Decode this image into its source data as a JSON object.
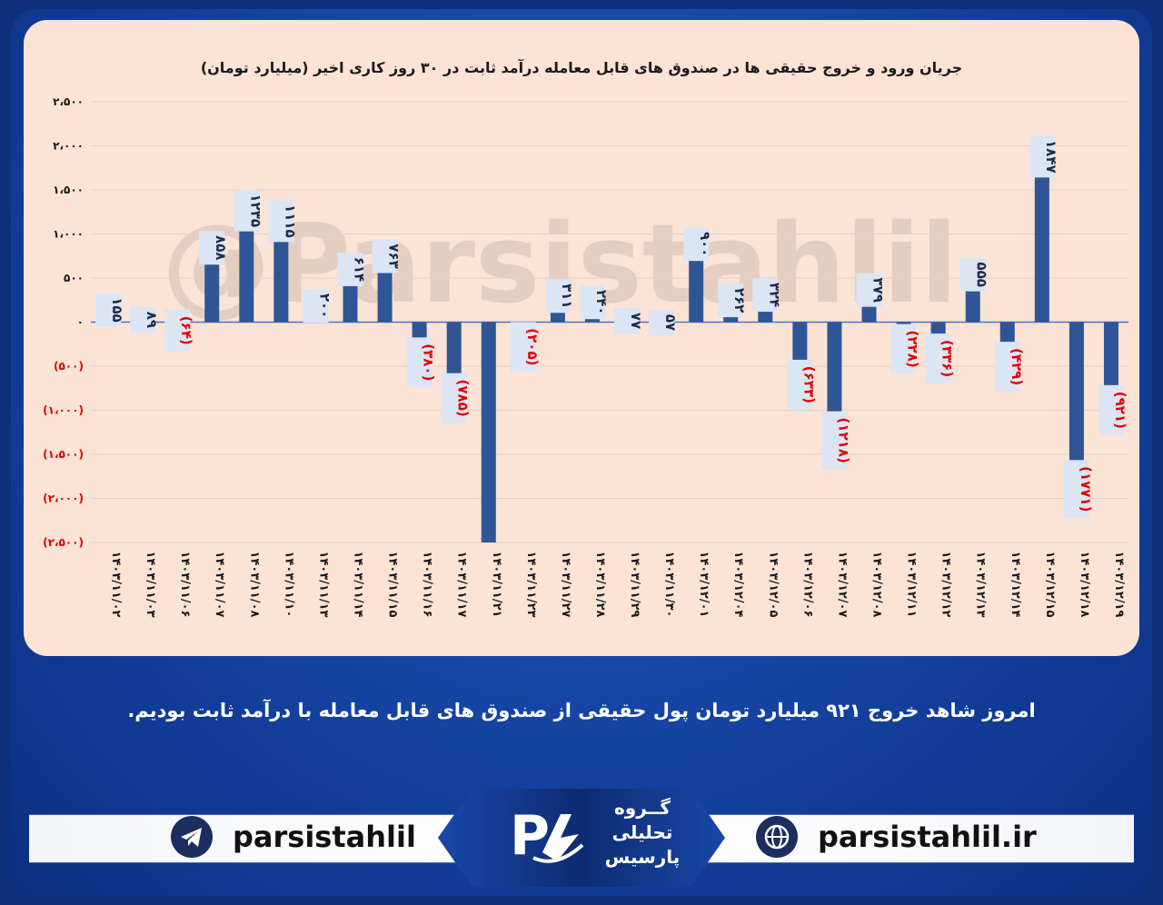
{
  "chart_data": {
    "type": "bar",
    "title": "جریان ورود و خروج حقیقی ها در صندوق های قابل معامله درآمد ثابت در ۳۰ روز کاری اخیر (میلیارد تومان)",
    "xlabel": "",
    "ylabel": "",
    "ylim": [
      -2500,
      2500
    ],
    "grid": true,
    "ytick_labels": [
      "۲،۵۰۰",
      "۲،۰۰۰",
      "۱،۵۰۰",
      "۱،۰۰۰",
      "۵۰۰",
      "۰",
      "(۵۰۰)",
      "(۱،۰۰۰)",
      "(۱،۵۰۰)",
      "(۲،۰۰۰)",
      "(۲،۵۰۰)"
    ],
    "ytick_values": [
      2500,
      2000,
      1500,
      1000,
      500,
      0,
      -500,
      -1000,
      -1500,
      -2000,
      -2500
    ],
    "categories": [
      "۱۴۰۳/۱۱/۰۲",
      "۱۴۰۳/۱۱/۰۳",
      "۱۴۰۳/۱۱/۰۶",
      "۱۴۰۳/۱۱/۰۷",
      "۱۴۰۳/۱۱/۰۸",
      "۱۴۰۳/۱۱/۱۰",
      "۱۴۰۳/۱۱/۱۳",
      "۱۴۰۳/۱۱/۱۴",
      "۱۴۰۳/۱۱/۱۵",
      "۱۴۰۳/۱۱/۱۶",
      "۱۴۰۳/۱۱/۱۷",
      "۱۴۰۳/۱۱/۲۱",
      "۱۴۰۳/۱۱/۲۳",
      "۱۴۰۳/۱۱/۲۷",
      "۱۴۰۳/۱۱/۲۸",
      "۱۴۰۳/۱۱/۲۹",
      "۱۴۰۳/۱۱/۳۰",
      "۱۴۰۳/۱۲/۰۱",
      "۱۴۰۳/۱۲/۰۴",
      "۱۴۰۳/۱۲/۰۵",
      "۱۴۰۳/۱۲/۰۶",
      "۱۴۰۳/۱۲/۰۷",
      "۱۴۰۳/۱۲/۰۸",
      "۱۴۰۳/۱۲/۱۱",
      "۱۴۰۳/۱۲/۱۲",
      "۱۴۰۳/۱۲/۱۳",
      "۱۴۰۳/۱۲/۱۴",
      "۱۴۰۳/۱۲/۱۵",
      "۱۴۰۳/۱۲/۱۸",
      "۱۴۰۳/۱۲/۱۹"
    ],
    "values": [
      155,
      89,
      -64,
      858,
      1235,
      1115,
      200,
      614,
      763,
      -380,
      -785,
      -2500,
      -205,
      311,
      240,
      77,
      57,
      900,
      262,
      324,
      -633,
      -1218,
      379,
      -228,
      -336,
      555,
      -429,
      1847,
      -1771,
      -921
    ],
    "data_labels": [
      "۱۵۵",
      "۸۹",
      "(۶۴)",
      "۸۵۸",
      "۱۲۳۵",
      "۱۱۱۵",
      "۲۰۰",
      "۶۱۴",
      "۷۶۳",
      "(۳۸۰)",
      "(۷۸۵)",
      "",
      "(۲۰۵)",
      "۳۱۱",
      "۲۴۰",
      "۷۷",
      "۵۷",
      "۹۰۰",
      "۲۶۲",
      "۳۲۴",
      "(۶۳۳)",
      "(۱۲۱۸)",
      "۳۷۹",
      "(۲۲۸)",
      "(۳۳۶)",
      "۵۵۵",
      "(۴۲۹)",
      "۱۸۴۷",
      "(۱۷۷۱)",
      "(۹۲۱)"
    ],
    "bar_color": "#2f5597",
    "positive_label_color": "#1f2a44",
    "negative_label_color": "#e00000",
    "label_box_color": "#dbe5f3",
    "watermark": "@Parsistahlil"
  },
  "summary": "امروز شاهد خروج ۹۲۱ میلیارد تومان پول حقیقی از صندوق های قابل معامله با درآمد ثابت بودیم.",
  "footer": {
    "telegram": "parsistahlil",
    "website": "parsistahlil.ir",
    "logo_lines": [
      "گــروه",
      "تحلیلی",
      "پارسیس"
    ],
    "logo_mark": "PA"
  }
}
